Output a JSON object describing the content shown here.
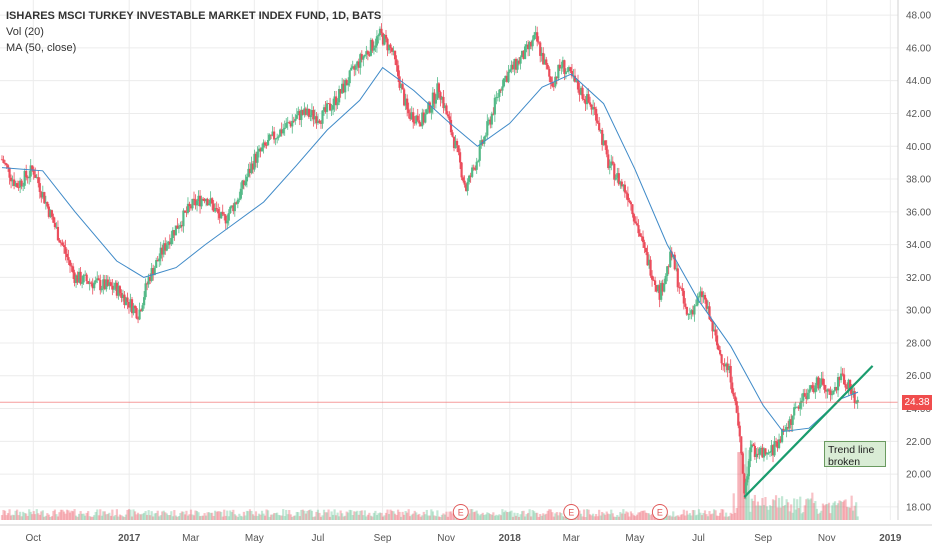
{
  "legend": {
    "title": "ISHARES MSCI TURKEY INVESTABLE MARKET INDEX FUND, 1D, BATS",
    "volume": "Vol (20)",
    "ma": "MA (50, close)"
  },
  "last_price_label": "24.38",
  "annotation": {
    "line1": "Trend line",
    "line2": "broken"
  },
  "colors": {
    "up": "#53b987",
    "down": "#eb4d5c",
    "ma_line": "#3f8ac8",
    "trend_line": "#1a9c6e",
    "price_line": "#f04d4d",
    "earnings_marker": "#e05a5a",
    "grid": "#ececec",
    "axis_text": "#555555"
  },
  "chart_data": {
    "type": "candlestick",
    "title": "ISHARES MSCI TURKEY INVESTABLE MARKET INDEX FUND, 1D, BATS",
    "ylim": [
      17.2,
      48.8
    ],
    "y_ticks": [
      "18.00",
      "20.00",
      "22.00",
      "24.00",
      "26.00",
      "28.00",
      "30.00",
      "32.00",
      "34.00",
      "36.00",
      "38.00",
      "40.00",
      "42.00",
      "44.00",
      "46.00",
      "48.00"
    ],
    "x_ticks": [
      "Oct",
      "2017",
      "Mar",
      "May",
      "Jul",
      "Sep",
      "Nov",
      "2018",
      "Mar",
      "May",
      "Jul",
      "Sep",
      "Nov",
      "2019"
    ],
    "price_path": [
      [
        "2016-09-01",
        39.2
      ],
      [
        "2016-09-15",
        37.6
      ],
      [
        "2016-10-01",
        38.6
      ],
      [
        "2016-10-20",
        35.4
      ],
      [
        "2016-11-10",
        32.0
      ],
      [
        "2016-12-01",
        31.6
      ],
      [
        "2016-12-20",
        31.3
      ],
      [
        "2017-01-10",
        29.8
      ],
      [
        "2017-01-20",
        32.0
      ],
      [
        "2017-02-10",
        34.6
      ],
      [
        "2017-03-01",
        36.3
      ],
      [
        "2017-03-15",
        37.0
      ],
      [
        "2017-04-01",
        35.4
      ],
      [
        "2017-04-15",
        36.8
      ],
      [
        "2017-05-01",
        39.2
      ],
      [
        "2017-05-20",
        40.6
      ],
      [
        "2017-06-15",
        42.0
      ],
      [
        "2017-07-05",
        41.8
      ],
      [
        "2017-07-20",
        43.0
      ],
      [
        "2017-08-10",
        45.2
      ],
      [
        "2017-08-30",
        46.8
      ],
      [
        "2017-09-10",
        45.8
      ],
      [
        "2017-09-25",
        42.0
      ],
      [
        "2017-10-10",
        41.6
      ],
      [
        "2017-10-25",
        43.6
      ],
      [
        "2017-11-10",
        40.0
      ],
      [
        "2017-11-20",
        37.4
      ],
      [
        "2017-12-05",
        40.0
      ],
      [
        "2017-12-25",
        44.0
      ],
      [
        "2018-01-15",
        45.6
      ],
      [
        "2018-01-26",
        46.6
      ],
      [
        "2018-02-10",
        43.8
      ],
      [
        "2018-02-20",
        45.0
      ],
      [
        "2018-03-05",
        43.8
      ],
      [
        "2018-03-25",
        42.0
      ],
      [
        "2018-04-05",
        39.0
      ],
      [
        "2018-04-25",
        37.0
      ],
      [
        "2018-05-10",
        33.6
      ],
      [
        "2018-05-25",
        31.0
      ],
      [
        "2018-06-05",
        33.4
      ],
      [
        "2018-06-20",
        29.6
      ],
      [
        "2018-07-05",
        31.0
      ],
      [
        "2018-07-20",
        27.6
      ],
      [
        "2018-08-01",
        26.0
      ],
      [
        "2018-08-10",
        22.0
      ],
      [
        "2018-08-14",
        18.8
      ],
      [
        "2018-08-20",
        21.6
      ],
      [
        "2018-09-05",
        21.0
      ],
      [
        "2018-09-25",
        23.0
      ],
      [
        "2018-10-10",
        24.8
      ],
      [
        "2018-10-25",
        25.6
      ],
      [
        "2018-11-05",
        24.6
      ],
      [
        "2018-11-15",
        26.0
      ],
      [
        "2018-11-22",
        25.4
      ],
      [
        "2018-12-01",
        24.38
      ]
    ],
    "ma50_path": [
      [
        "2016-09-01",
        38.7
      ],
      [
        "2016-10-10",
        38.5
      ],
      [
        "2016-11-10",
        36.0
      ],
      [
        "2016-12-20",
        33.0
      ],
      [
        "2017-01-15",
        32.0
      ],
      [
        "2017-02-15",
        32.6
      ],
      [
        "2017-03-15",
        34.0
      ],
      [
        "2017-04-10",
        35.2
      ],
      [
        "2017-05-10",
        36.6
      ],
      [
        "2017-06-10",
        38.8
      ],
      [
        "2017-07-10",
        41.0
      ],
      [
        "2017-08-10",
        42.8
      ],
      [
        "2017-09-01",
        44.8
      ],
      [
        "2017-10-01",
        43.4
      ],
      [
        "2017-11-01",
        41.6
      ],
      [
        "2017-12-01",
        40.0
      ],
      [
        "2018-01-01",
        41.4
      ],
      [
        "2018-02-01",
        43.6
      ],
      [
        "2018-03-01",
        44.4
      ],
      [
        "2018-04-01",
        42.6
      ],
      [
        "2018-05-01",
        38.6
      ],
      [
        "2018-06-01",
        34.0
      ],
      [
        "2018-07-01",
        30.6
      ],
      [
        "2018-08-01",
        27.8
      ],
      [
        "2018-09-01",
        24.2
      ],
      [
        "2018-09-20",
        22.6
      ],
      [
        "2018-10-15",
        22.8
      ],
      [
        "2018-11-15",
        24.6
      ],
      [
        "2018-12-01",
        25.0
      ]
    ],
    "trend_line": [
      [
        "2018-08-14",
        18.6
      ],
      [
        "2018-12-15",
        26.6
      ]
    ],
    "last_price": 24.38,
    "earnings_markers": [
      "2017-11-15",
      "2018-03-01",
      "2018-05-25"
    ]
  }
}
